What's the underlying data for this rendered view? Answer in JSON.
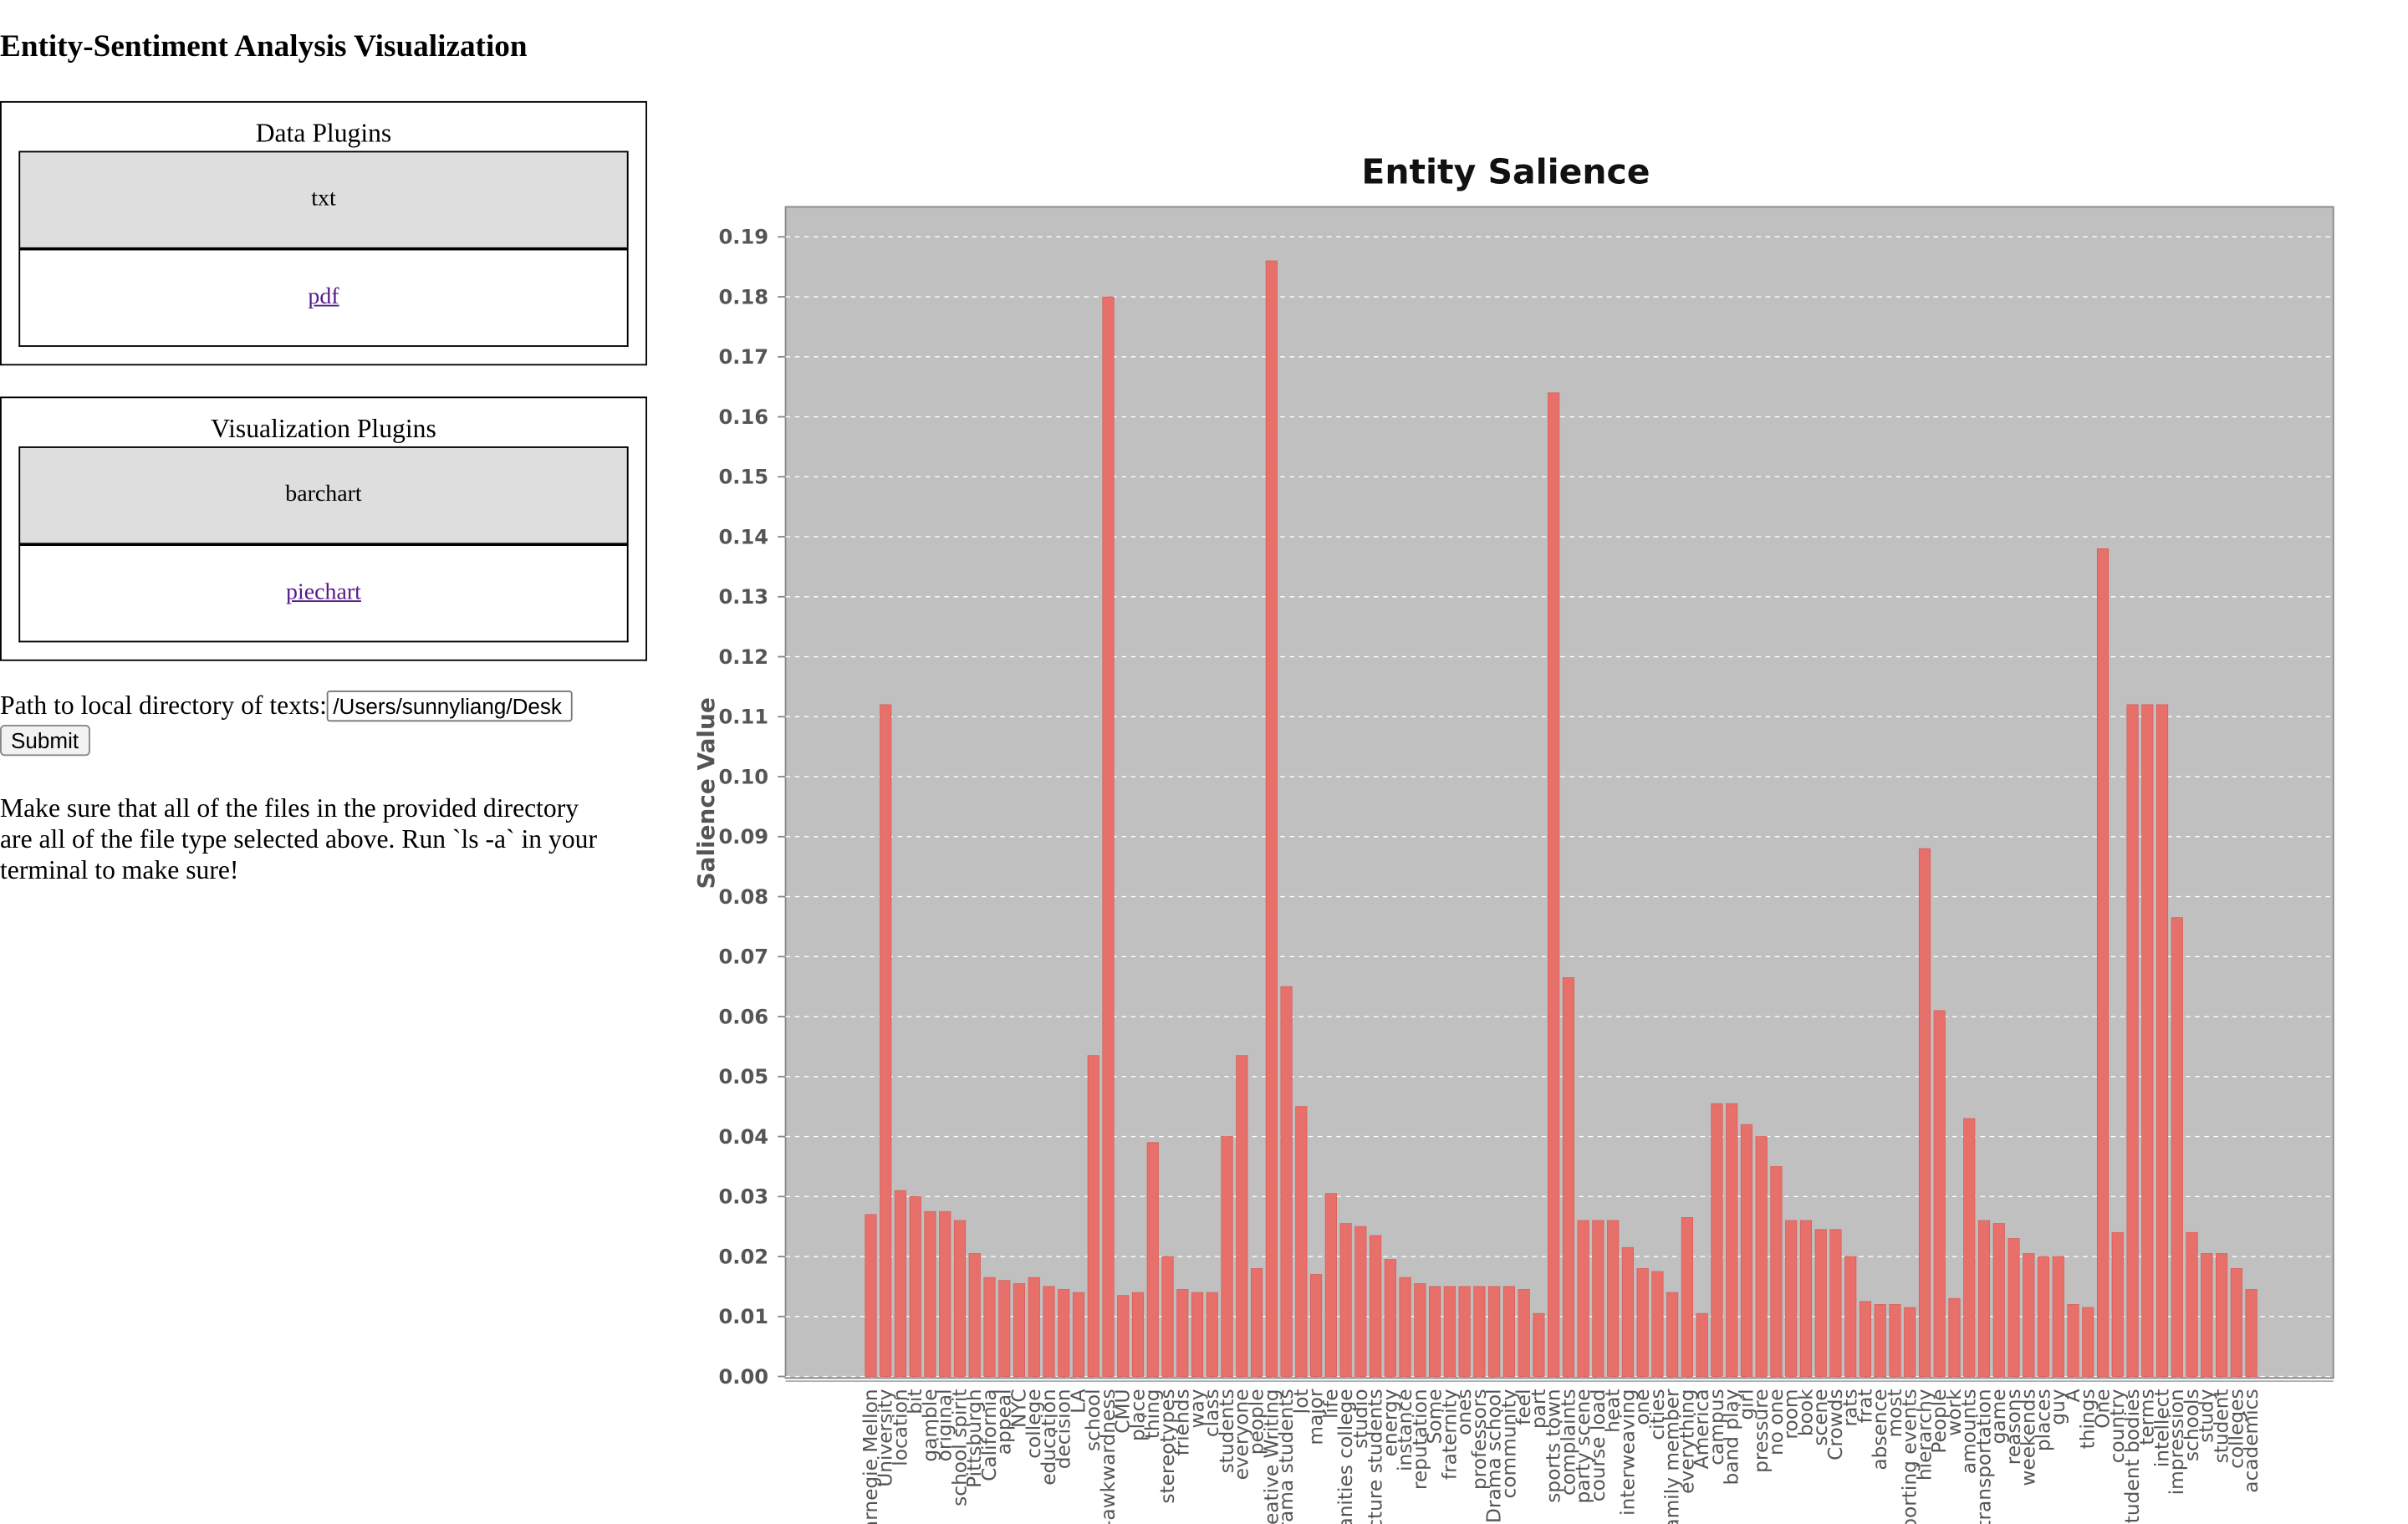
{
  "header": {
    "title": "Entity-Sentiment Analysis Visualization"
  },
  "data_plugins": {
    "title": "Data Plugins",
    "items": [
      "txt",
      "pdf"
    ]
  },
  "visualization_plugins": {
    "title": "Visualization Plugins",
    "items": [
      "barchart",
      "piechart"
    ]
  },
  "form": {
    "label": "Path to local directory of texts:",
    "input_value": "/Users/sunnyliang/Desk",
    "button": "Submit"
  },
  "note": "Make sure that all of the files in the provided directory are all of the file type selected above. Run `ls -a` in your terminal to make sure!",
  "chart_data": {
    "type": "bar",
    "title": "Entity Salience",
    "y_label": "Salience Value",
    "color": "#e8706a",
    "grid": true,
    "ylim": [
      0,
      0.195
    ],
    "yticks": [
      {
        "value": 0,
        "label": "0.00"
      },
      {
        "value": 0.01,
        "label": "0.01"
      },
      {
        "value": 0.02,
        "label": "0.02"
      },
      {
        "value": 0.03,
        "label": "0.03"
      },
      {
        "value": 0.04,
        "label": "0.04"
      },
      {
        "value": 0.05,
        "label": "0.05"
      },
      {
        "value": 0.06,
        "label": "0.06"
      },
      {
        "value": 0.07,
        "label": "0.07"
      },
      {
        "value": 0.08,
        "label": "0.08"
      },
      {
        "value": 0.09,
        "label": "0.09"
      },
      {
        "value": 0.1,
        "label": "0.10"
      },
      {
        "value": 0.11,
        "label": "0.11"
      },
      {
        "value": 0.12,
        "label": "0.12"
      },
      {
        "value": 0.13,
        "label": "0.13"
      },
      {
        "value": 0.14,
        "label": "0.14"
      },
      {
        "value": 0.15,
        "label": "0.15"
      },
      {
        "value": 0.16,
        "label": "0.16"
      },
      {
        "value": 0.17,
        "label": "0.17"
      },
      {
        "value": 0.18,
        "label": "0.18"
      },
      {
        "value": 0.19,
        "label": "0.19"
      }
    ],
    "categories": [
      "Carnegie Mellon",
      "University",
      "location",
      "bit",
      "gamble",
      "original",
      "school spirit",
      "Pittsburgh",
      "California",
      "appeal",
      "NYC",
      "college",
      "education",
      "decision",
      "LA",
      "school",
      "social-awkwardness",
      "CMU",
      "place",
      "thing",
      "stereotypes",
      "friends",
      "way",
      "class",
      "students",
      "everyone",
      "people",
      "Creative Writing",
      "Drama students",
      "lot",
      "major",
      "life",
      "Humanities college",
      "studio",
      "lecture students",
      "energy",
      "instance",
      "reputation",
      "Some",
      "fraternity",
      "ones",
      "professors",
      "Drama school",
      "community",
      "feel",
      "part",
      "sports town",
      "complaints",
      "party scene",
      "course load",
      "heat",
      "interweaving",
      "one",
      "cities",
      "family member",
      "everything",
      "America",
      "campus",
      "band play",
      "girl",
      "pressure",
      "no one",
      "room",
      "book",
      "scene",
      "Crowds",
      "rats",
      "frat",
      "absence",
      "most",
      "sporting events",
      "hierarchy",
      "People",
      "work",
      "amounts",
      "transportation",
      "game",
      "reasons",
      "weekends",
      "places",
      "guy",
      "A",
      "things",
      "One",
      "country",
      "student bodies",
      "terms",
      "intellect",
      "impression",
      "schools",
      "study",
      "student",
      "colleges",
      "academics"
    ],
    "values": [
      0.027,
      0.112,
      0.031,
      0.03,
      0.0275,
      0.0275,
      0.026,
      0.0205,
      0.0165,
      0.016,
      0.0155,
      0.0165,
      0.015,
      0.0145,
      0.014,
      0.0535,
      0.18,
      0.0135,
      0.014,
      0.039,
      0.02,
      0.0145,
      0.014,
      0.014,
      0.04,
      0.0535,
      0.018,
      0.186,
      0.065,
      0.045,
      0.017,
      0.0305,
      0.0255,
      0.025,
      0.0235,
      0.0195,
      0.0165,
      0.0155,
      0.015,
      0.015,
      0.015,
      0.015,
      0.015,
      0.015,
      0.0145,
      0.0105,
      0.164,
      0.0665,
      0.026,
      0.026,
      0.026,
      0.0215,
      0.018,
      0.0175,
      0.014,
      0.0265,
      0.0105,
      0.0455,
      0.0455,
      0.042,
      0.04,
      0.035,
      0.026,
      0.026,
      0.0245,
      0.0245,
      0.02,
      0.0125,
      0.012,
      0.012,
      0.0115,
      0.088,
      0.061,
      0.013,
      0.043,
      0.026,
      0.0255,
      0.023,
      0.0205,
      0.02,
      0.02,
      0.012,
      0.0115,
      0.138,
      0.024,
      0.112,
      0.112,
      0.112,
      0.0765,
      0.024,
      0.0205,
      0.0205,
      0.018,
      0.0145
    ]
  }
}
